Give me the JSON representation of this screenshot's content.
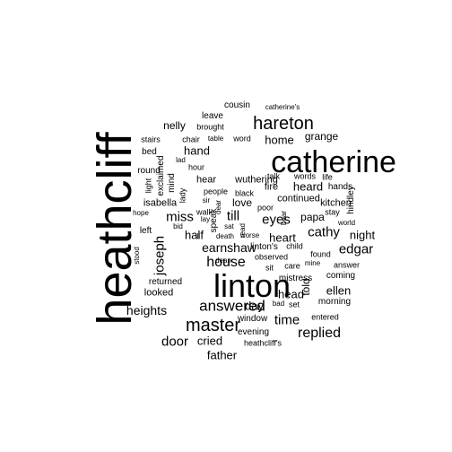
{
  "text_color": "#000000",
  "background": "#ffffff",
  "words": [
    {
      "text": "heathcliff",
      "weight": 1.0
    },
    {
      "text": "catherine",
      "weight": 0.64
    },
    {
      "text": "linton",
      "weight": 0.62
    },
    {
      "text": "hareton",
      "weight": 0.36
    },
    {
      "text": "master",
      "weight": 0.38
    },
    {
      "text": "answered",
      "weight": 0.33
    },
    {
      "text": "joseph",
      "weight": 0.28
    },
    {
      "text": "house",
      "weight": 0.28
    },
    {
      "text": "replied",
      "weight": 0.28
    },
    {
      "text": "door",
      "weight": 0.27
    },
    {
      "text": "time",
      "weight": 0.27
    },
    {
      "text": "cathy",
      "weight": 0.26
    },
    {
      "text": "miss",
      "weight": 0.26
    },
    {
      "text": "eyes",
      "weight": 0.26
    },
    {
      "text": "till",
      "weight": 0.25
    },
    {
      "text": "edgar",
      "weight": 0.25
    },
    {
      "text": "earnshaw",
      "weight": 0.24
    },
    {
      "text": "heights",
      "weight": 0.24
    },
    {
      "text": "cried",
      "weight": 0.23
    },
    {
      "text": "father",
      "weight": 0.23
    },
    {
      "text": "head",
      "weight": 0.23
    },
    {
      "text": "ellen",
      "weight": 0.22
    },
    {
      "text": "night",
      "weight": 0.22
    },
    {
      "text": "day",
      "weight": 0.22
    },
    {
      "text": "heart",
      "weight": 0.21
    },
    {
      "text": "half",
      "weight": 0.21
    },
    {
      "text": "hand",
      "weight": 0.2
    },
    {
      "text": "home",
      "weight": 0.2
    },
    {
      "text": "heard",
      "weight": 0.2
    },
    {
      "text": "grange",
      "weight": 0.19
    },
    {
      "text": "nelly",
      "weight": 0.19
    },
    {
      "text": "love",
      "weight": 0.19
    },
    {
      "text": "told",
      "weight": 0.18
    },
    {
      "text": "papa",
      "weight": 0.17
    },
    {
      "text": "isabella",
      "weight": 0.17
    },
    {
      "text": "continued",
      "weight": 0.17
    },
    {
      "text": "kitchen",
      "weight": 0.17
    },
    {
      "text": "wuthering",
      "weight": 0.17
    },
    {
      "text": "hear",
      "weight": 0.17
    },
    {
      "text": "fire",
      "weight": 0.17
    },
    {
      "text": "mind",
      "weight": 0.16
    },
    {
      "text": "exclaimed",
      "weight": 0.16
    },
    {
      "text": "looked",
      "weight": 0.16
    },
    {
      "text": "returned",
      "weight": 0.16
    },
    {
      "text": "round",
      "weight": 0.16
    },
    {
      "text": "bed",
      "weight": 0.16
    },
    {
      "text": "hands",
      "weight": 0.16
    },
    {
      "text": "morning",
      "weight": 0.16
    },
    {
      "text": "coming",
      "weight": 0.16
    },
    {
      "text": "cousin",
      "weight": 0.16
    },
    {
      "text": "hindley",
      "weight": 0.16
    },
    {
      "text": "window",
      "weight": 0.15
    },
    {
      "text": "evening",
      "weight": 0.15
    },
    {
      "text": "entered",
      "weight": 0.14
    },
    {
      "text": "heathcliff's",
      "weight": 0.14
    },
    {
      "text": "linton's",
      "weight": 0.15
    },
    {
      "text": "left",
      "weight": 0.15
    },
    {
      "text": "leave",
      "weight": 0.15
    },
    {
      "text": "brought",
      "weight": 0.14
    },
    {
      "text": "chair",
      "weight": 0.14
    },
    {
      "text": "stairs",
      "weight": 0.14
    },
    {
      "text": "hour",
      "weight": 0.14
    },
    {
      "text": "speak",
      "weight": 0.15
    },
    {
      "text": "lady",
      "weight": 0.14
    },
    {
      "text": "light",
      "weight": 0.13
    },
    {
      "text": "stood",
      "weight": 0.12
    },
    {
      "text": "mistress",
      "weight": 0.15
    },
    {
      "text": "observed",
      "weight": 0.14
    },
    {
      "text": "answer",
      "weight": 0.14
    },
    {
      "text": "set",
      "weight": 0.14
    },
    {
      "text": "child",
      "weight": 0.14
    },
    {
      "text": "care",
      "weight": 0.14
    },
    {
      "text": "sit",
      "weight": 0.13
    },
    {
      "text": "stay",
      "weight": 0.13
    },
    {
      "text": "life",
      "weight": 0.13
    },
    {
      "text": "found",
      "weight": 0.13
    },
    {
      "text": "talk",
      "weight": 0.13
    },
    {
      "text": "words",
      "weight": 0.13
    },
    {
      "text": "poor",
      "weight": 0.13
    },
    {
      "text": "people",
      "weight": 0.13
    },
    {
      "text": "walk",
      "weight": 0.12
    },
    {
      "text": "black",
      "weight": 0.12
    },
    {
      "text": "bad",
      "weight": 0.12
    },
    {
      "text": "worse",
      "weight": 0.12
    },
    {
      "text": "world",
      "weight": 0.12
    },
    {
      "text": "mine",
      "weight": 0.12
    },
    {
      "text": "lay",
      "weight": 0.12
    },
    {
      "text": "bid",
      "weight": 0.12
    },
    {
      "text": "sat",
      "weight": 0.12
    },
    {
      "text": "death",
      "weight": 0.12
    },
    {
      "text": "dean",
      "weight": 0.12
    },
    {
      "text": "ill",
      "weight": 0.12
    },
    {
      "text": "sir",
      "weight": 0.12
    },
    {
      "text": "hope",
      "weight": 0.12
    },
    {
      "text": "table",
      "weight": 0.12
    },
    {
      "text": "word",
      "weight": 0.13
    },
    {
      "text": "lad",
      "weight": 0.12
    },
    {
      "text": "catherine's",
      "weight": 0.12
    },
    {
      "text": "bear",
      "weight": 0.11
    },
    {
      "text": "read",
      "weight": 0.11
    },
    {
      "text": "dear",
      "weight": 0.11
    }
  ]
}
